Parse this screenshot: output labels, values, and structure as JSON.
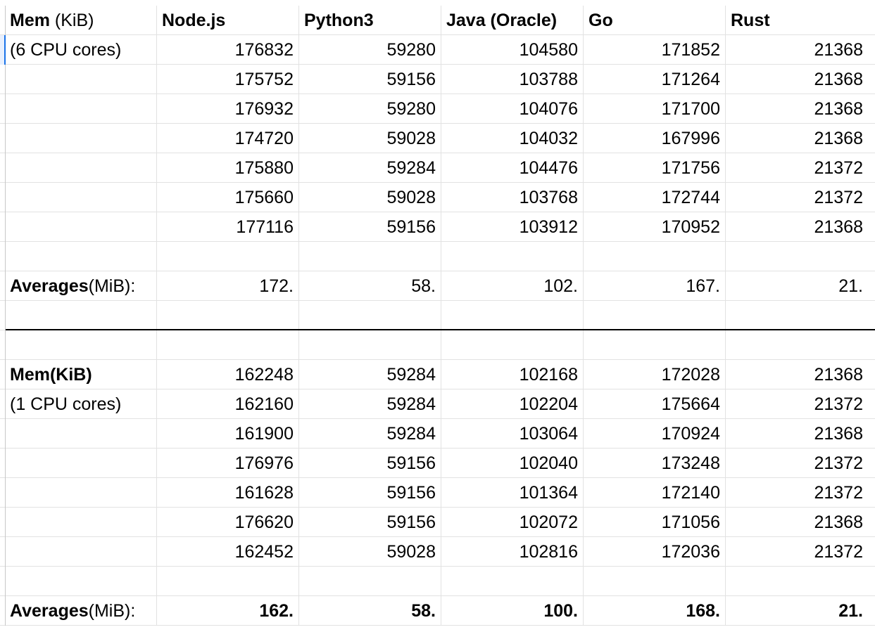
{
  "table1": {
    "header": {
      "label_bold": "Mem",
      "label_rest": " (KiB)",
      "columns": [
        "Node.js",
        "Python3",
        "Java (Oracle)",
        "Go",
        "Rust"
      ]
    },
    "subtitle": "(6 CPU cores)",
    "rows": [
      [
        "176832",
        "59280",
        "104580",
        "171852",
        "21368"
      ],
      [
        "175752",
        "59156",
        "103788",
        "171264",
        "21368"
      ],
      [
        "176932",
        "59280",
        "104076",
        "171700",
        "21368"
      ],
      [
        "174720",
        "59028",
        "104032",
        "167996",
        "21368"
      ],
      [
        "175880",
        "59284",
        "104476",
        "171756",
        "21372"
      ],
      [
        "175660",
        "59028",
        "103768",
        "172744",
        "21372"
      ],
      [
        "177116",
        "59156",
        "103912",
        "170952",
        "21368"
      ]
    ],
    "averages": {
      "label_bold": "Averages",
      "label_rest": "(MiB):",
      "values": [
        "172.",
        "58.",
        "102.",
        "167.",
        "21."
      ]
    }
  },
  "table2": {
    "label_bold": "Mem(KiB)",
    "subtitle": "(1 CPU cores)",
    "rows": [
      [
        "162248",
        "59284",
        "102168",
        "172028",
        "21368"
      ],
      [
        "162160",
        "59284",
        "102204",
        "175664",
        "21372"
      ],
      [
        "161900",
        "59284",
        "103064",
        "170924",
        "21368"
      ],
      [
        "176976",
        "59156",
        "102040",
        "173248",
        "21372"
      ],
      [
        "161628",
        "59156",
        "101364",
        "172140",
        "21372"
      ],
      [
        "176620",
        "59156",
        "102072",
        "171056",
        "21368"
      ],
      [
        "162452",
        "59028",
        "102816",
        "172036",
        "21372"
      ]
    ],
    "averages": {
      "label_bold": "Averages",
      "label_rest": "(MiB):",
      "values": [
        "162.",
        "58.",
        "100.",
        "168.",
        "21."
      ]
    }
  }
}
